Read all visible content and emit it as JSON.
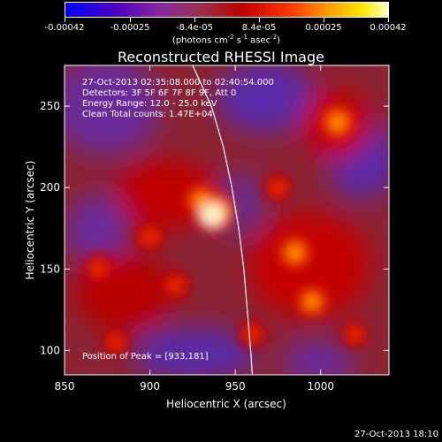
{
  "colorbar": {
    "tick_labels": [
      "-0.00042",
      "-0.00025",
      "-8.4e-05",
      "8.4e-05",
      "0.00025",
      "0.00042"
    ],
    "units_prefix": "(photons cm",
    "units_sup1": "-2",
    "units_mid1": " s",
    "units_sup2": "-1",
    "units_mid2": " asec",
    "units_sup3": "-2",
    "units_suffix": ")",
    "min": -0.00042,
    "max": 0.00042,
    "stops": [
      "#0000ff",
      "#5000c0",
      "#8a2aa0",
      "#9a2f4a",
      "#c00000",
      "#ff3a00",
      "#ffa000",
      "#ffe700",
      "#ffffc0"
    ]
  },
  "title": "Reconstructed RHESSI Image",
  "info": {
    "line1": "27-Oct-2013 02:35:08.000 to 02:40:54.000",
    "line2": "Detectors: 3F 5F 6F 7F 8F 9F, Att 0",
    "line3": "Energy Range: 12.0 - 25.0 keV",
    "line4": "Clean     Total counts: 1.47E+04",
    "peak": "Position of Peak = [933,181]"
  },
  "footer": "27-Oct-2013 18:10",
  "chart_data": {
    "type": "heatmap",
    "title": "Reconstructed RHESSI Image",
    "xlabel": "Heliocentric X (arcsec)",
    "ylabel": "Heliocentric Y (arcsec)",
    "xlim": [
      850,
      1040
    ],
    "ylim": [
      85,
      275
    ],
    "x_ticks": [
      850,
      900,
      950,
      1000
    ],
    "y_ticks": [
      100,
      150,
      200,
      250
    ],
    "x_tick_labels": [
      "850",
      "900",
      "950",
      "1000"
    ],
    "y_tick_labels": [
      "100",
      "150",
      "200",
      "250"
    ],
    "colorbar_range": [
      -0.00042,
      0.00042
    ],
    "colorbar_ticks": [
      -0.00042,
      -0.00025,
      -8.4e-05,
      8.4e-05,
      0.00025,
      0.00042
    ],
    "peak_position": [
      933,
      181
    ],
    "limb_curve": [
      [
        925,
        275
      ],
      [
        936,
        250
      ],
      [
        943,
        225
      ],
      [
        948,
        200
      ],
      [
        952,
        175
      ],
      [
        955,
        150
      ],
      [
        957,
        125
      ],
      [
        959,
        100
      ],
      [
        960,
        85
      ]
    ],
    "bright_sources": [
      {
        "x": 938,
        "y": 185,
        "intensity": 1.0
      },
      {
        "x": 930,
        "y": 192,
        "intensity": 0.75
      },
      {
        "x": 1010,
        "y": 240,
        "intensity": 0.85
      },
      {
        "x": 985,
        "y": 160,
        "intensity": 0.8
      },
      {
        "x": 995,
        "y": 130,
        "intensity": 0.7
      },
      {
        "x": 975,
        "y": 200,
        "intensity": 0.55
      },
      {
        "x": 870,
        "y": 150,
        "intensity": 0.6
      },
      {
        "x": 900,
        "y": 170,
        "intensity": 0.65
      },
      {
        "x": 960,
        "y": 110,
        "intensity": 0.55
      },
      {
        "x": 1020,
        "y": 110,
        "intensity": 0.5
      },
      {
        "x": 880,
        "y": 105,
        "intensity": 0.5
      },
      {
        "x": 915,
        "y": 140,
        "intensity": 0.6
      }
    ]
  }
}
